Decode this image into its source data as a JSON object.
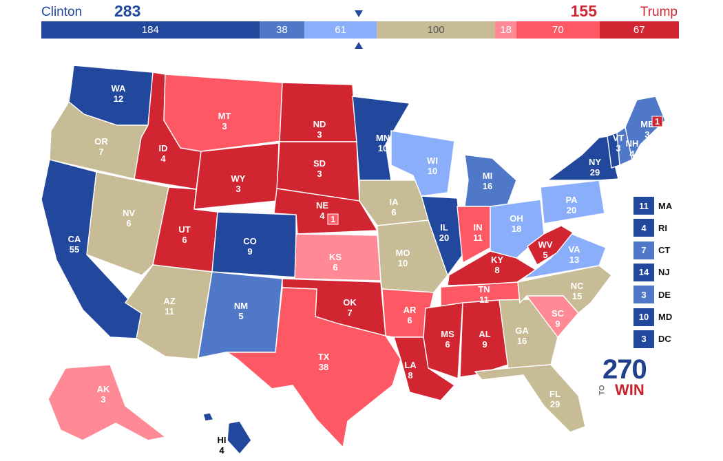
{
  "header": {
    "left_name": "Clinton",
    "left_total": "283",
    "right_name": "Trump",
    "right_total": "155"
  },
  "colors": {
    "safe_d": "#22489e",
    "likely_d": "#4f78c8",
    "lean_d": "#8aaefa",
    "tossup": "#c8bc96",
    "lean_r": "#ff8a96",
    "likely_r": "#ff5865",
    "safe_r": "#d22532"
  },
  "segments": [
    {
      "label": "184",
      "value": 184,
      "color": "#22489e"
    },
    {
      "label": "38",
      "value": 38,
      "color": "#4f78c8"
    },
    {
      "label": "61",
      "value": 61,
      "color": "#8aaefa"
    },
    {
      "label": "100",
      "value": 100,
      "color": "#c8bc96"
    },
    {
      "label": "18",
      "value": 18,
      "color": "#ff8a96"
    },
    {
      "label": "70",
      "value": 70,
      "color": "#ff5865"
    },
    {
      "label": "67",
      "value": 67,
      "color": "#d22532"
    }
  ],
  "states": [
    {
      "abbr": "WA",
      "ev": "12",
      "rating": "safe_d"
    },
    {
      "abbr": "OR",
      "ev": "7",
      "rating": "tossup"
    },
    {
      "abbr": "CA",
      "ev": "55",
      "rating": "safe_d"
    },
    {
      "abbr": "ID",
      "ev": "4",
      "rating": "safe_r"
    },
    {
      "abbr": "NV",
      "ev": "6",
      "rating": "tossup"
    },
    {
      "abbr": "MT",
      "ev": "3",
      "rating": "likely_r"
    },
    {
      "abbr": "WY",
      "ev": "3",
      "rating": "safe_r"
    },
    {
      "abbr": "UT",
      "ev": "6",
      "rating": "safe_r"
    },
    {
      "abbr": "AZ",
      "ev": "11",
      "rating": "tossup"
    },
    {
      "abbr": "CO",
      "ev": "9",
      "rating": "safe_d"
    },
    {
      "abbr": "NM",
      "ev": "5",
      "rating": "likely_d"
    },
    {
      "abbr": "ND",
      "ev": "3",
      "rating": "safe_r"
    },
    {
      "abbr": "SD",
      "ev": "3",
      "rating": "safe_r"
    },
    {
      "abbr": "NE",
      "ev": "4",
      "rating": "safe_r"
    },
    {
      "abbr": "KS",
      "ev": "6",
      "rating": "lean_r"
    },
    {
      "abbr": "OK",
      "ev": "7",
      "rating": "safe_r"
    },
    {
      "abbr": "TX",
      "ev": "38",
      "rating": "likely_r"
    },
    {
      "abbr": "MN",
      "ev": "10",
      "rating": "safe_d"
    },
    {
      "abbr": "IA",
      "ev": "6",
      "rating": "tossup"
    },
    {
      "abbr": "MO",
      "ev": "10",
      "rating": "tossup"
    },
    {
      "abbr": "AR",
      "ev": "6",
      "rating": "likely_r"
    },
    {
      "abbr": "LA",
      "ev": "8",
      "rating": "safe_r"
    },
    {
      "abbr": "WI",
      "ev": "10",
      "rating": "lean_d"
    },
    {
      "abbr": "IL",
      "ev": "20",
      "rating": "safe_d"
    },
    {
      "abbr": "MI",
      "ev": "16",
      "rating": "likely_d"
    },
    {
      "abbr": "IN",
      "ev": "11",
      "rating": "likely_r"
    },
    {
      "abbr": "OH",
      "ev": "18",
      "rating": "lean_d"
    },
    {
      "abbr": "KY",
      "ev": "8",
      "rating": "safe_r"
    },
    {
      "abbr": "TN",
      "ev": "11",
      "rating": "likely_r"
    },
    {
      "abbr": "MS",
      "ev": "6",
      "rating": "safe_r"
    },
    {
      "abbr": "AL",
      "ev": "9",
      "rating": "safe_r"
    },
    {
      "abbr": "GA",
      "ev": "16",
      "rating": "tossup"
    },
    {
      "abbr": "FL",
      "ev": "29",
      "rating": "tossup"
    },
    {
      "abbr": "SC",
      "ev": "9",
      "rating": "lean_r"
    },
    {
      "abbr": "NC",
      "ev": "15",
      "rating": "tossup"
    },
    {
      "abbr": "VA",
      "ev": "13",
      "rating": "lean_d"
    },
    {
      "abbr": "WV",
      "ev": "5",
      "rating": "safe_r"
    },
    {
      "abbr": "PA",
      "ev": "20",
      "rating": "lean_d"
    },
    {
      "abbr": "NY",
      "ev": "29",
      "rating": "safe_d"
    },
    {
      "abbr": "VT",
      "ev": "3",
      "rating": "safe_d"
    },
    {
      "abbr": "NH",
      "ev": "4",
      "rating": "likely_d"
    },
    {
      "abbr": "ME",
      "ev": "3",
      "rating": "likely_d"
    },
    {
      "abbr": "AK",
      "ev": "3",
      "rating": "lean_r"
    },
    {
      "abbr": "HI",
      "ev": "4",
      "rating": "safe_d"
    }
  ],
  "district_badges": [
    {
      "state": "ME",
      "label": "1",
      "rating": "safe_r"
    },
    {
      "state": "NE",
      "label": "1",
      "rating": "likely_r"
    }
  ],
  "small_states": [
    {
      "abbr": "MA",
      "ev": "11",
      "rating": "safe_d"
    },
    {
      "abbr": "RI",
      "ev": "4",
      "rating": "safe_d"
    },
    {
      "abbr": "CT",
      "ev": "7",
      "rating": "likely_d"
    },
    {
      "abbr": "NJ",
      "ev": "14",
      "rating": "safe_d"
    },
    {
      "abbr": "DE",
      "ev": "3",
      "rating": "likely_d"
    },
    {
      "abbr": "MD",
      "ev": "10",
      "rating": "safe_d"
    },
    {
      "abbr": "DC",
      "ev": "3",
      "rating": "safe_d"
    }
  ],
  "logo": {
    "number": "270",
    "to": "TO",
    "win": "WIN"
  }
}
